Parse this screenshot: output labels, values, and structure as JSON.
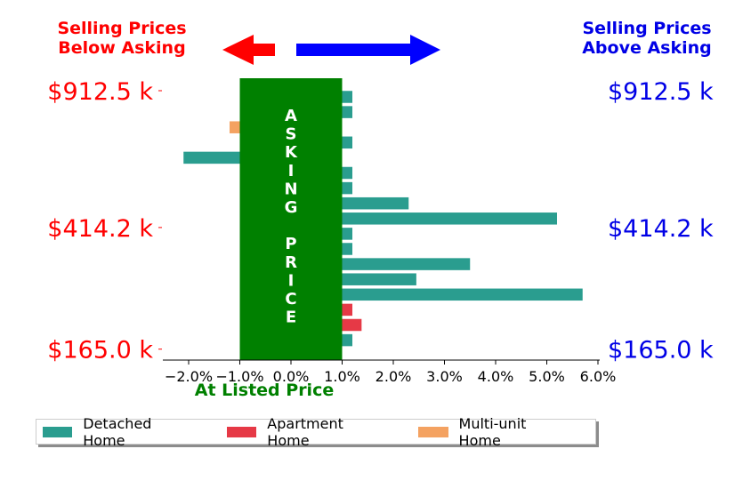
{
  "left_header": [
    "Selling Prices",
    "Below Asking"
  ],
  "right_header": [
    "Selling Prices",
    "Above Asking"
  ],
  "listed_label": "At Listed Price",
  "banner_letters": [
    "A",
    "S",
    "K",
    "I",
    "N",
    "G",
    "",
    "P",
    "R",
    "I",
    "C",
    "E"
  ],
  "colors": {
    "below": "#ff0000",
    "above": "#0000e6",
    "banner": "#008000",
    "detached": "#2a9d8f",
    "apartment": "#e63946",
    "multi": "#f4a261"
  },
  "chart_data": {
    "type": "bar",
    "orientation": "horizontal",
    "xlim": [
      -2.5,
      6.3
    ],
    "x_ticks": [
      -2,
      -1,
      0,
      1,
      2,
      3,
      4,
      5,
      6
    ],
    "x_tick_labels": [
      "−2.0%",
      "−1.0%",
      "0.0%",
      "1.0%",
      "2.0%",
      "3.0%",
      "4.0%",
      "5.0%",
      "6.0%"
    ],
    "asking_band": [
      -1.0,
      1.0
    ],
    "y_ticks": [
      {
        "label": "$912.5 k",
        "row": 0
      },
      {
        "label": "$414.2 k",
        "row": 9
      },
      {
        "label": "$165.0 k",
        "row": 17
      }
    ],
    "bars": [
      {
        "row": 0,
        "value": 1.2,
        "type": "Detached Home"
      },
      {
        "row": 1,
        "value": 1.2,
        "type": "Detached Home"
      },
      {
        "row": 2,
        "value": -1.2,
        "type": "Multi-unit Home"
      },
      {
        "row": 3,
        "value": 1.2,
        "type": "Detached Home"
      },
      {
        "row": 4,
        "value": -2.1,
        "type": "Detached Home"
      },
      {
        "row": 5,
        "value": 1.2,
        "type": "Detached Home"
      },
      {
        "row": 6,
        "value": 1.2,
        "type": "Detached Home"
      },
      {
        "row": 7,
        "value": 2.3,
        "type": "Detached Home"
      },
      {
        "row": 8,
        "value": 5.2,
        "type": "Detached Home"
      },
      {
        "row": 9,
        "value": 1.2,
        "type": "Detached Home"
      },
      {
        "row": 10,
        "value": 1.2,
        "type": "Detached Home"
      },
      {
        "row": 11,
        "value": 3.5,
        "type": "Detached Home"
      },
      {
        "row": 12,
        "value": 2.45,
        "type": "Detached Home"
      },
      {
        "row": 13,
        "value": 5.7,
        "type": "Detached Home"
      },
      {
        "row": 14,
        "value": 1.2,
        "type": "Apartment Home"
      },
      {
        "row": 15,
        "value": 1.38,
        "type": "Apartment Home"
      },
      {
        "row": 16,
        "value": 1.2,
        "type": "Detached Home"
      }
    ],
    "legend": [
      {
        "label": "Detached Home",
        "color": "#2a9d8f"
      },
      {
        "label": "Apartment Home",
        "color": "#e63946"
      },
      {
        "label": "Multi-unit Home",
        "color": "#f4a261"
      }
    ],
    "legend_position": "bottom-left"
  }
}
